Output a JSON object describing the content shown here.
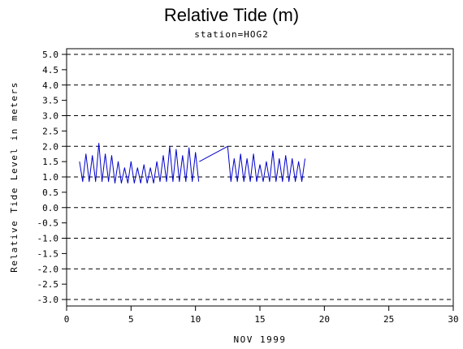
{
  "chart_data": {
    "type": "line",
    "title": "Relative Tide (m)",
    "subtitle": "station=HOG2",
    "xlabel": "NOV 1999",
    "ylabel": "Relative Tide Level in meters",
    "xlim": [
      0,
      30
    ],
    "ylim": [
      -3.0,
      5.0
    ],
    "x_ticks": [
      "0",
      "5",
      "10",
      "15",
      "20",
      "25",
      "30"
    ],
    "y_ticks": [
      "-3.0",
      "-2.5",
      "-2.0",
      "-1.5",
      "-1.0",
      "-0.5",
      "0.0",
      "0.5",
      "1.0",
      "1.5",
      "2.0",
      "2.5",
      "3.0",
      "3.5",
      "4.0",
      "4.5",
      "5.0"
    ],
    "gridlines_y": [
      -3.0,
      -2.0,
      -1.0,
      0.0,
      1.0,
      2.0,
      3.0,
      4.0,
      5.0
    ],
    "grid_style": "dashed horizontal",
    "line_color": "#0000cc",
    "series": [
      {
        "segments": [
          {
            "x": [
              1.0,
              1.25,
              1.5,
              1.75,
              2.0,
              2.25,
              2.5,
              2.75,
              3.0,
              3.25,
              3.5,
              3.75,
              4.0,
              4.25,
              4.5,
              4.75,
              5.0,
              5.25,
              5.5,
              5.75,
              6.0,
              6.25,
              6.5,
              6.75,
              7.0,
              7.25,
              7.5,
              7.75,
              8.0,
              8.25,
              8.5,
              8.75,
              9.0,
              9.25,
              9.5,
              9.75,
              10.0,
              10.25
            ],
            "y": [
              1.5,
              0.85,
              1.75,
              0.85,
              1.7,
              0.85,
              2.1,
              0.85,
              1.75,
              0.85,
              1.7,
              0.8,
              1.5,
              0.8,
              1.3,
              0.8,
              1.5,
              0.8,
              1.3,
              0.8,
              1.4,
              0.8,
              1.3,
              0.8,
              1.5,
              0.85,
              1.7,
              0.85,
              2.0,
              0.85,
              1.9,
              0.85,
              1.7,
              0.85,
              1.95,
              0.85,
              1.8,
              0.85
            ]
          },
          {
            "x": [
              10.3,
              12.5
            ],
            "y": [
              1.5,
              2.0
            ]
          },
          {
            "x": [
              12.5,
              12.75,
              13.0,
              13.25,
              13.5,
              13.75,
              14.0,
              14.25,
              14.5,
              14.75,
              15.0,
              15.25,
              15.5,
              15.75,
              16.0,
              16.25,
              16.5,
              16.75,
              17.0,
              17.25,
              17.5,
              17.75,
              18.0,
              18.25,
              18.5
            ],
            "y": [
              2.0,
              0.85,
              1.6,
              0.85,
              1.75,
              0.85,
              1.6,
              0.85,
              1.75,
              0.85,
              1.4,
              0.85,
              1.5,
              0.85,
              1.85,
              0.85,
              1.6,
              0.85,
              1.7,
              0.85,
              1.6,
              0.85,
              1.5,
              0.85,
              1.6
            ]
          }
        ]
      }
    ]
  }
}
